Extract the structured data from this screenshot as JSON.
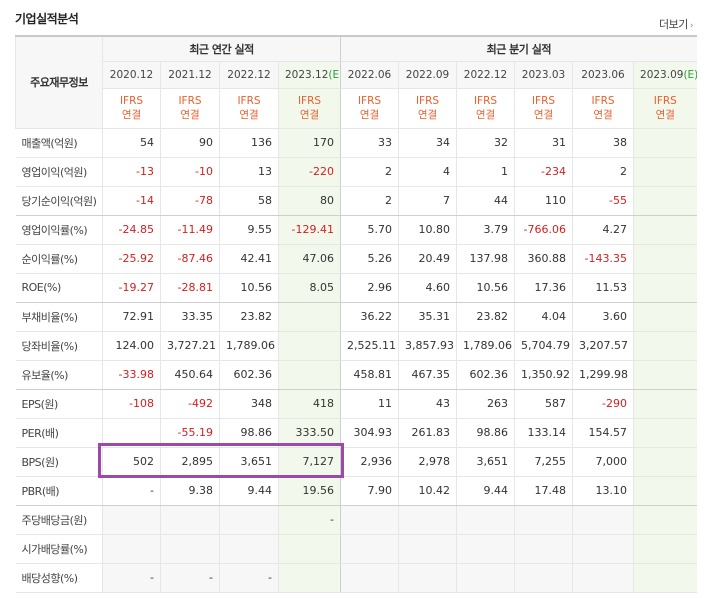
{
  "title": "기업실적분석",
  "more_label": "더보기",
  "row_header_label": "주요재무정보",
  "annual_group_label": "최근 연간 실적",
  "quarter_group_label": "최근 분기 실적",
  "columns": [
    {
      "period": "2020.12",
      "est": "",
      "std1": "IFRS",
      "std2": "연결",
      "hl": false
    },
    {
      "period": "2021.12",
      "est": "",
      "std1": "IFRS",
      "std2": "연결",
      "hl": false
    },
    {
      "period": "2022.12",
      "est": "",
      "std1": "IFRS",
      "std2": "연결",
      "hl": false
    },
    {
      "period": "2023.12",
      "est": "(E)",
      "std1": "IFRS",
      "std2": "연결",
      "hl": true
    },
    {
      "period": "2022.06",
      "est": "",
      "std1": "IFRS",
      "std2": "연결",
      "hl": false
    },
    {
      "period": "2022.09",
      "est": "",
      "std1": "IFRS",
      "std2": "연결",
      "hl": false
    },
    {
      "period": "2022.12",
      "est": "",
      "std1": "IFRS",
      "std2": "연결",
      "hl": false
    },
    {
      "period": "2023.03",
      "est": "",
      "std1": "IFRS",
      "std2": "연결",
      "hl": false
    },
    {
      "period": "2023.06",
      "est": "",
      "std1": "IFRS",
      "std2": "연결",
      "hl": false
    },
    {
      "period": "2023.09",
      "est": "(E)",
      "std1": "IFRS",
      "std2": "연결",
      "hl": true
    }
  ],
  "rows": [
    {
      "label": "매출액(억원)",
      "values": [
        "54",
        "90",
        "136",
        "170",
        "33",
        "34",
        "32",
        "31",
        "38",
        ""
      ],
      "sep": false
    },
    {
      "label": "영업이익(억원)",
      "values": [
        "-13",
        "-10",
        "13",
        "-220",
        "2",
        "4",
        "1",
        "-234",
        "2",
        ""
      ],
      "sep": false
    },
    {
      "label": "당기순이익(억원)",
      "values": [
        "-14",
        "-78",
        "58",
        "80",
        "2",
        "7",
        "44",
        "110",
        "-55",
        ""
      ],
      "sep": true
    },
    {
      "label": "영업이익률(%)",
      "values": [
        "-24.85",
        "-11.49",
        "9.55",
        "-129.41",
        "5.70",
        "10.80",
        "3.79",
        "-766.06",
        "4.27",
        ""
      ],
      "sep": false
    },
    {
      "label": "순이익률(%)",
      "values": [
        "-25.92",
        "-87.46",
        "42.41",
        "47.06",
        "5.26",
        "20.49",
        "137.98",
        "360.88",
        "-143.35",
        ""
      ],
      "sep": false
    },
    {
      "label": "ROE(%)",
      "values": [
        "-19.27",
        "-28.81",
        "10.56",
        "8.05",
        "2.96",
        "4.60",
        "10.56",
        "17.36",
        "11.53",
        ""
      ],
      "sep": true
    },
    {
      "label": "부채비율(%)",
      "values": [
        "72.91",
        "33.35",
        "23.82",
        "",
        "36.22",
        "35.31",
        "23.82",
        "4.04",
        "3.60",
        ""
      ],
      "sep": false
    },
    {
      "label": "당좌비율(%)",
      "values": [
        "124.00",
        "3,727.21",
        "1,789.06",
        "",
        "2,525.11",
        "3,857.93",
        "1,789.06",
        "5,704.79",
        "3,207.57",
        ""
      ],
      "sep": false
    },
    {
      "label": "유보율(%)",
      "values": [
        "-33.98",
        "450.64",
        "602.36",
        "",
        "458.81",
        "467.35",
        "602.36",
        "1,350.92",
        "1,299.98",
        ""
      ],
      "sep": true
    },
    {
      "label": "EPS(원)",
      "values": [
        "-108",
        "-492",
        "348",
        "418",
        "11",
        "43",
        "263",
        "587",
        "-290",
        ""
      ],
      "sep": false
    },
    {
      "label": "PER(배)",
      "values": [
        "",
        "-55.19",
        "98.86",
        "333.50",
        "304.93",
        "261.83",
        "98.86",
        "133.14",
        "154.57",
        ""
      ],
      "sep": false
    },
    {
      "label": "BPS(원)",
      "values": [
        "502",
        "2,895",
        "3,651",
        "7,127",
        "2,936",
        "2,978",
        "3,651",
        "7,255",
        "7,000",
        ""
      ],
      "sep": false
    },
    {
      "label": "PBR(배)",
      "values": [
        "-",
        "9.38",
        "9.44",
        "19.56",
        "7.90",
        "10.42",
        "9.44",
        "17.48",
        "13.10",
        ""
      ],
      "sep": true
    },
    {
      "label": "주당배당금(원)",
      "values": [
        "",
        "",
        "",
        "-",
        "",
        "",
        "",
        "",
        "",
        ""
      ],
      "blank": true,
      "sep": false
    },
    {
      "label": "시가배당률(%)",
      "values": [
        "",
        "",
        "",
        "",
        "",
        "",
        "",
        "",
        "",
        ""
      ],
      "blank": true,
      "sep": false
    },
    {
      "label": "배당성향(%)",
      "values": [
        "-",
        "-",
        "-",
        "",
        "",
        "",
        "",
        "",
        "",
        ""
      ],
      "blank": true,
      "sep": false
    }
  ],
  "highlight_color": "#9b4aa8",
  "negative_color": "#d31f1f",
  "std_color": "#e8602c"
}
